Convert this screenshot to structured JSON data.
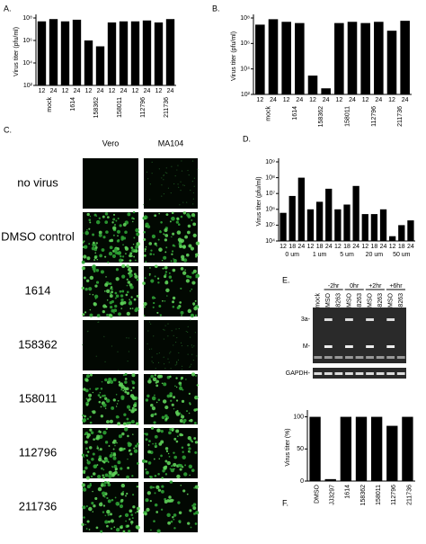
{
  "chart_data": [
    {
      "type": "bar",
      "label": "A.",
      "y_label": "Virus titer (pfu/ml)",
      "log_scale": true,
      "color": "#000000",
      "categories": [
        "12",
        "24",
        "12",
        "24",
        "12",
        "24",
        "12",
        "24",
        "12",
        "24",
        "12",
        "24"
      ],
      "groups": [
        "mock",
        "1614",
        "158362",
        "158011",
        "112796",
        "211736"
      ],
      "values": [
        50000000,
        80000000,
        50000000,
        70000000,
        1000000,
        300000,
        40000000,
        50000000,
        50000000,
        60000000,
        40000000,
        80000000
      ],
      "ylim": [
        100,
        100000000
      ],
      "yticks": [
        {
          "value": 100,
          "label": "10²"
        },
        {
          "value": 10000,
          "label": "10⁴"
        },
        {
          "value": 1000000,
          "label": "10⁶"
        },
        {
          "value": 100000000,
          "label": "10⁸"
        }
      ]
    },
    {
      "type": "bar",
      "label": "B.",
      "y_label": "Virus titer (pfu/ml)",
      "log_scale": true,
      "color": "#000000",
      "categories": [
        "12",
        "24",
        "12",
        "24",
        "12",
        "24",
        "12",
        "24",
        "12",
        "24",
        "12",
        "24"
      ],
      "groups": [
        "mock",
        "1614",
        "158362",
        "158011",
        "112796",
        "211736"
      ],
      "values": [
        30000000,
        80000000,
        50000000,
        40000000,
        3000,
        300,
        40000000,
        50000000,
        40000000,
        50000000,
        10000000,
        60000000
      ],
      "ylim": [
        100,
        100000000
      ],
      "yticks": [
        {
          "value": 100,
          "label": "10²"
        },
        {
          "value": 10000,
          "label": "10⁴"
        },
        {
          "value": 1000000,
          "label": "10⁶"
        },
        {
          "value": 100000000,
          "label": "10⁸"
        }
      ]
    },
    {
      "type": "bar",
      "label": "D.",
      "y_label": "Virus titer (pfu/ml)",
      "log_scale": true,
      "color": "#000000",
      "categories": [
        "12",
        "18",
        "24",
        "12",
        "18",
        "24",
        "12",
        "18",
        "24",
        "12",
        "18",
        "24",
        "12",
        "18",
        "24"
      ],
      "groups": [
        "0 um",
        "1 um",
        "5 um",
        "20 um",
        "50 um"
      ],
      "values": [
        600000,
        7000000,
        100000000,
        1000000,
        3000000,
        20000000,
        1000000,
        2000000,
        30000000,
        500000,
        500000,
        1000000,
        20000,
        100000,
        200000
      ],
      "ylim": [
        10000,
        1000000000
      ],
      "yticks": [
        {
          "value": 10000,
          "label": "10⁴"
        },
        {
          "value": 100000,
          "label": "10⁵"
        },
        {
          "value": 1000000,
          "label": "10⁶"
        },
        {
          "value": 10000000,
          "label": "10⁷"
        },
        {
          "value": 100000000,
          "label": "10⁸"
        },
        {
          "value": 1000000000,
          "label": "10⁹"
        }
      ]
    },
    {
      "type": "bar",
      "label": "F.",
      "y_label": "Virus titer (%)",
      "log_scale": false,
      "color": "#000000",
      "categories": [
        "DMSO",
        "JJ3297",
        "1614",
        "158362",
        "158011",
        "112796",
        "211736"
      ],
      "values": [
        100,
        3,
        100,
        100,
        100,
        86,
        100
      ],
      "ylim": [
        0,
        105
      ],
      "yticks": [
        0,
        50,
        100
      ]
    }
  ],
  "panel_c": {
    "label": "C.",
    "columns": [
      "Vero",
      "MA104"
    ],
    "rows": [
      "no virus",
      "DMSO control",
      "1614",
      "158362",
      "158011",
      "112796",
      "211736"
    ]
  },
  "panel_e": {
    "label": "E.",
    "timepoints": [
      "-2hr",
      "0hr",
      "+2hr",
      "+6hr"
    ],
    "lanes": [
      "mock",
      "DMSO",
      "158263",
      "DMSO",
      "158263",
      "DMSO",
      "158263",
      "DMSO",
      "158263"
    ],
    "bands": [
      "3a-",
      "M-"
    ],
    "loading": "GAPDH-"
  }
}
